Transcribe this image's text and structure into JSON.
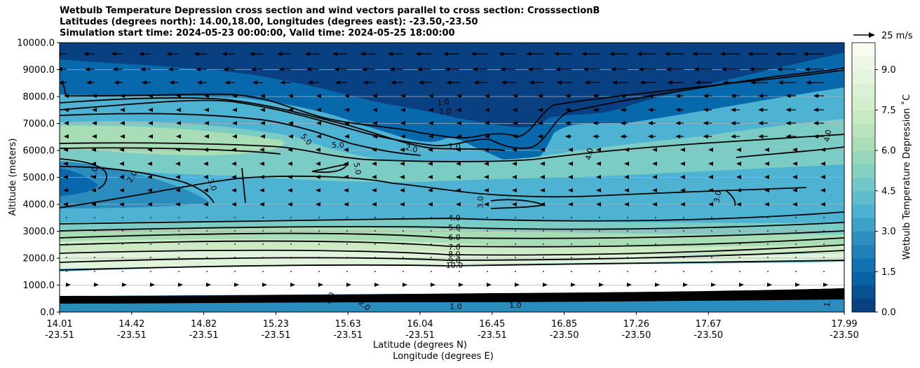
{
  "chart_data": {
    "type": "heatmap",
    "title_lines": [
      "Wetbulb Temperature Depression cross section and wind vectors parallel to cross section: CrosssectionB",
      "Latitudes (degrees north): 14.00,18.00, Longitudes (degrees east): -23.50,-23.50",
      "Simulation start time: 2024-05-23 00:00:00, Valid time: 2024-05-25 18:00:00"
    ],
    "ylabel": "Altitude (meters)",
    "xlabel_lat": "Latitude (degrees N)",
    "xlabel_lon": "Longitude (degrees E)",
    "ylim": [
      0,
      10000
    ],
    "yticks": [
      "0.0",
      "1000.0",
      "2000.0",
      "3000.0",
      "4000.0",
      "5000.0",
      "6000.0",
      "7000.0",
      "8000.0",
      "9000.0",
      "10000.0"
    ],
    "x_ticks": [
      {
        "lat": "14.01",
        "lon": "-23.51"
      },
      {
        "lat": "14.42",
        "lon": "-23.51"
      },
      {
        "lat": "14.82",
        "lon": "-23.51"
      },
      {
        "lat": "15.23",
        "lon": "-23.51"
      },
      {
        "lat": "15.63",
        "lon": "-23.51"
      },
      {
        "lat": "16.04",
        "lon": "-23.51"
      },
      {
        "lat": "16.45",
        "lon": "-23.51"
      },
      {
        "lat": "16.85",
        "lon": "-23.50"
      },
      {
        "lat": "17.26",
        "lon": "-23.50"
      },
      {
        "lat": "17.67",
        "lon": "-23.50"
      },
      {
        "lat": "17.99",
        "lon": "-23.50"
      }
    ],
    "colorbar": {
      "label": "Wetbulb Temperature Depression $^\\circ$C",
      "label_display": "Wetbulb Temperature Depression ˚C",
      "range": [
        0,
        10
      ],
      "ticks": [
        "0.0",
        "1.5",
        "3.0",
        "4.5",
        "6.0",
        "7.5",
        "9.0"
      ],
      "colormap": "GnBu_r",
      "colors": [
        "#084081",
        "#0868ac",
        "#2b8cbe",
        "#4eb3d3",
        "#7bccc4",
        "#a8ddb5",
        "#ccebc5",
        "#e0f3db",
        "#f7fcf0"
      ]
    },
    "quiver_key": "25 m/s",
    "contour_levels": [
      "1.0",
      "2.0",
      "3.0",
      "4.0",
      "5.0",
      "6.0",
      "7.0",
      "8.0",
      "9.0",
      "10.0"
    ],
    "layers": [
      {
        "altitude_range": [
          0,
          600
        ],
        "depression": 1.0
      },
      {
        "altitude_range": [
          600,
          1700
        ],
        "depression": 10.0
      },
      {
        "altitude_range": [
          1700,
          3300
        ],
        "depression": 7.0
      },
      {
        "altitude_range": [
          3300,
          5500
        ],
        "depression": 3.0
      },
      {
        "altitude_range": [
          5500,
          7200
        ],
        "depression": 5.0
      },
      {
        "altitude_range": [
          7200,
          10000
        ],
        "depression": 1.0
      }
    ],
    "grid": true
  }
}
